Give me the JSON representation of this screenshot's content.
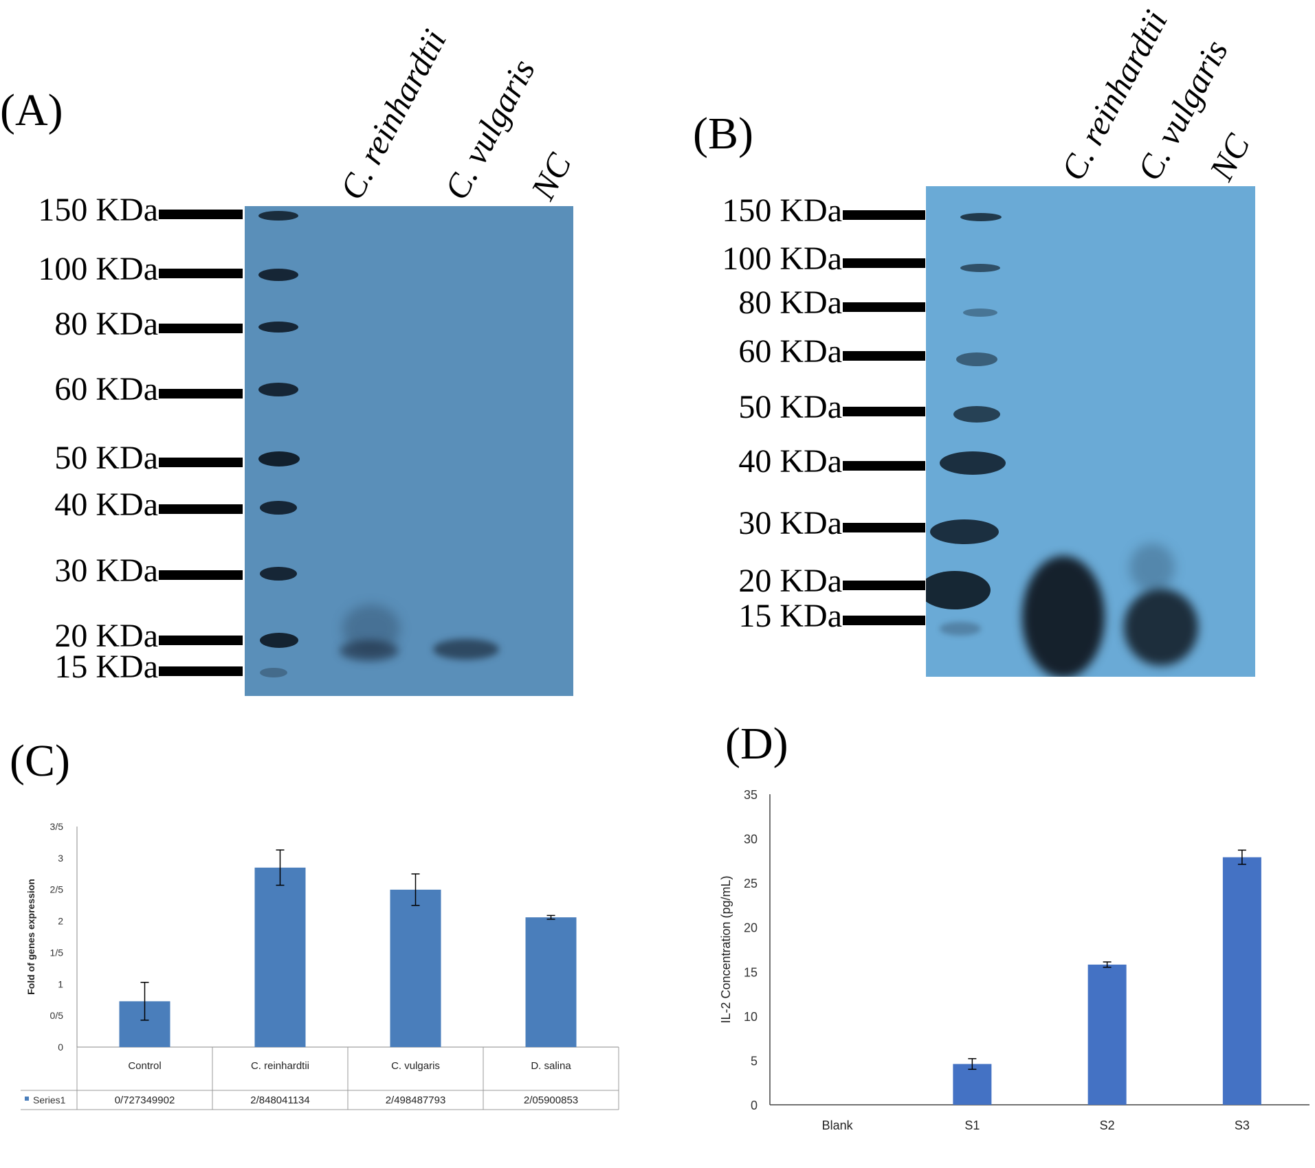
{
  "panels": {
    "a": {
      "letter": "(A)",
      "markers": [
        "150 KDa",
        "100 KDa",
        "80 KDa",
        "60 KDa",
        "50 KDa",
        "40 KDa",
        "30 KDa",
        "20 KDa",
        "15 KDa"
      ],
      "lanes": [
        "C. reinhardtii",
        "C. vulgaris",
        "NC"
      ]
    },
    "b": {
      "letter": "(B)",
      "markers": [
        "150 KDa",
        "100 KDa",
        "80 KDa",
        "60 KDa",
        "50 KDa",
        "40 KDa",
        "30 KDa",
        "20 KDa",
        "15 KDa"
      ],
      "lanes": [
        "C. reinhardtii",
        "C. vulgaris",
        "NC"
      ]
    },
    "c": {
      "letter": "(C)"
    },
    "d": {
      "letter": "(D)"
    }
  },
  "colors": {
    "blot_a": "#5a8fb9",
    "blot_b": "#6aaad6",
    "bar_c": "#4a7ebb",
    "bar_d": "#4472c4"
  },
  "chart_data": [
    {
      "type": "bar",
      "ylabel": "Fold of genes expression",
      "ylim": [
        0,
        3.5
      ],
      "yticks": [
        "0",
        "0/5",
        "1",
        "1/5",
        "2",
        "2/5",
        "3",
        "3/5"
      ],
      "categories": [
        "Control",
        "C. reinhardtii",
        "C. vulgaris",
        "D. salina"
      ],
      "series": [
        {
          "name": "Series1",
          "values": [
            0.727,
            2.848,
            2.498,
            2.059
          ],
          "errors": [
            0.3,
            0.28,
            0.25,
            0.03
          ],
          "table_values": [
            "0/727349902",
            "2/848041134",
            "2/498487793",
            "2/05900853"
          ]
        }
      ],
      "grid": false,
      "legend": "data-table"
    },
    {
      "type": "bar",
      "ylabel": "IL-2 Concentration (pg/mL)",
      "ylim": [
        0,
        35
      ],
      "yticks": [
        "0",
        "5",
        "10",
        "15",
        "20",
        "25",
        "30",
        "35"
      ],
      "categories": [
        "Blank",
        "S1",
        "S2",
        "S3"
      ],
      "series": [
        {
          "values": [
            0,
            4.6,
            15.8,
            27.9
          ],
          "errors": [
            0,
            0.6,
            0.3,
            0.8
          ]
        }
      ],
      "grid": false
    }
  ]
}
